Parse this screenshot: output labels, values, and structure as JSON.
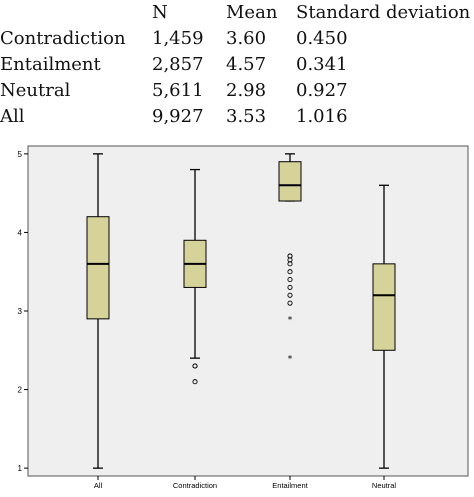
{
  "table": {
    "columns": [
      "",
      "N",
      "Mean",
      "Standard deviation"
    ],
    "rows": [
      [
        "Contradiction",
        "1,459",
        "3.60",
        "0.450"
      ],
      [
        "Entailment",
        "2,857",
        "4.57",
        "0.341"
      ],
      [
        "Neutral",
        "5,611",
        "2.98",
        "0.927"
      ],
      [
        "All",
        "9,927",
        "3.53",
        "1.016"
      ]
    ]
  },
  "chart_data": {
    "type": "boxplot",
    "categories": [
      "All",
      "Contradiction",
      "Entailment",
      "Neutral"
    ],
    "boxes": [
      {
        "category": "All",
        "min": 1.0,
        "q1": 2.9,
        "median": 3.6,
        "q3": 4.2,
        "max": 5.0,
        "outliers": [],
        "extremes": []
      },
      {
        "category": "Contradiction",
        "min": 2.4,
        "q1": 3.3,
        "median": 3.6,
        "q3": 3.9,
        "max": 4.8,
        "outliers": [
          2.3,
          2.3,
          2.1
        ],
        "extremes": []
      },
      {
        "category": "Entailment",
        "min": 4.4,
        "q1": 4.4,
        "median": 4.6,
        "q3": 4.9,
        "max": 5.0,
        "outliers": [
          3.7,
          3.7,
          3.65,
          3.6,
          3.5,
          3.4,
          3.3,
          3.2,
          3.1
        ],
        "extremes": [
          2.9,
          2.4
        ]
      },
      {
        "category": "Neutral",
        "min": 1.0,
        "q1": 2.5,
        "median": 3.2,
        "q3": 3.6,
        "max": 4.6,
        "outliers": [],
        "extremes": []
      }
    ],
    "ylim": [
      0.9,
      5.1
    ],
    "yticks": [
      1,
      2,
      3,
      4,
      5
    ],
    "grid": false,
    "colors": {
      "box_fill": "#d6d39a",
      "plot_bg": "#efefef",
      "stroke": "#000000"
    }
  }
}
